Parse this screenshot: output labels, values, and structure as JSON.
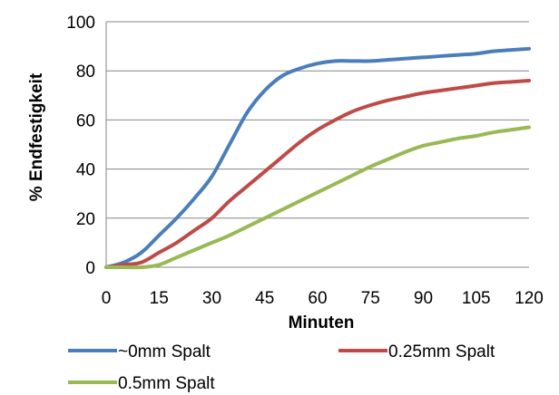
{
  "chart_data": {
    "type": "line",
    "title": "",
    "xlabel": "Minuten",
    "ylabel": "% Endfestigkeit",
    "x": [
      0,
      5,
      10,
      15,
      20,
      25,
      30,
      35,
      40,
      45,
      50,
      55,
      60,
      65,
      70,
      75,
      80,
      85,
      90,
      95,
      100,
      105,
      110,
      115,
      120
    ],
    "xticks": [
      0,
      15,
      30,
      45,
      60,
      75,
      90,
      105,
      120
    ],
    "yticks": [
      0,
      20,
      40,
      60,
      80,
      100
    ],
    "xlim": [
      0,
      120
    ],
    "ylim": [
      0,
      100
    ],
    "grid": true,
    "legend": "bottom",
    "series": [
      {
        "name": "~0mm Spalt",
        "color": "#4a7ebb",
        "values": [
          0,
          2,
          6,
          13,
          20,
          28,
          37,
          50,
          63,
          72,
          78,
          81,
          83,
          84,
          84,
          84,
          84.5,
          85,
          85.5,
          86,
          86.5,
          87,
          88,
          88.5,
          89
        ]
      },
      {
        "name": "0.25mm Spalt",
        "color": "#be4b48",
        "values": [
          0,
          1,
          2,
          6,
          10,
          15,
          20,
          27,
          33,
          39,
          45,
          51,
          56,
          60,
          63.5,
          66,
          68,
          69.5,
          71,
          72,
          73,
          74,
          75,
          75.5,
          76
        ]
      },
      {
        "name": "0.5mm Spalt",
        "color": "#98b954",
        "values": [
          0,
          0,
          0,
          1,
          4,
          7,
          10,
          13,
          16.5,
          20,
          23.5,
          27,
          30.5,
          34,
          37.5,
          41,
          44,
          47,
          49.5,
          51,
          52.5,
          53.5,
          55,
          56,
          57
        ]
      }
    ]
  }
}
